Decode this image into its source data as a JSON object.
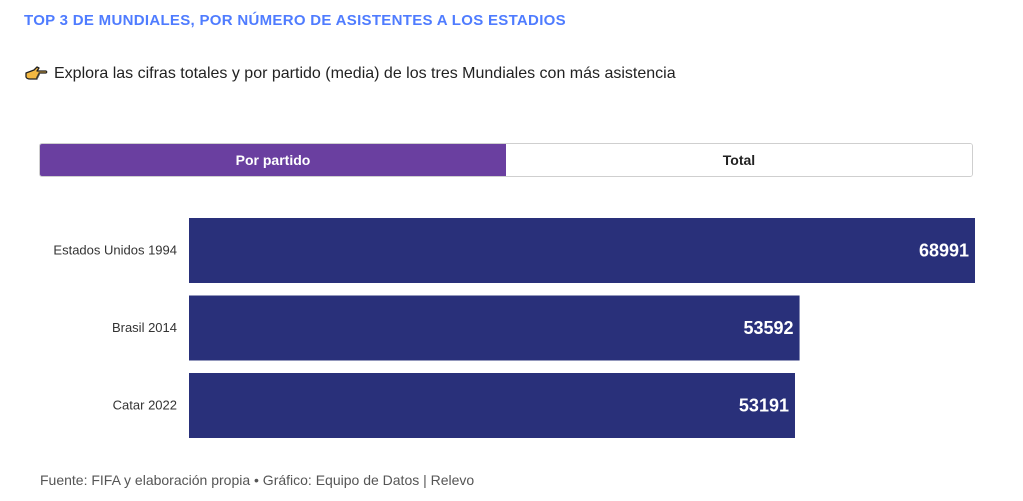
{
  "header": {
    "title": "TOP 3 DE MUNDIALES, POR NÚMERO DE ASISTENTES A LOS ESTADIOS",
    "subtitle": "Explora las cifras totales y por partido (media) de los tres Mundiales con más asistencia",
    "subtitle_icon": "pointing-hand-icon"
  },
  "toggle": {
    "options": [
      "Por partido",
      "Total"
    ],
    "selected": "Por partido"
  },
  "chart_data": {
    "type": "bar",
    "orientation": "horizontal",
    "categories": [
      "Estados Unidos 1994",
      "Brasil 2014",
      "Catar 2022"
    ],
    "values": [
      68991,
      53592,
      53191
    ],
    "xlim": [
      0,
      68991
    ],
    "grid": false,
    "legend": "none"
  },
  "footer": {
    "source": "Fuente: FIFA y elaboración propia • Gráfico: Equipo de Datos | Relevo"
  },
  "colors": {
    "title": "#4f7cff",
    "toggle_active": "#6a3fa0",
    "bar": "#29307a",
    "bar_label": "#ffffff"
  }
}
